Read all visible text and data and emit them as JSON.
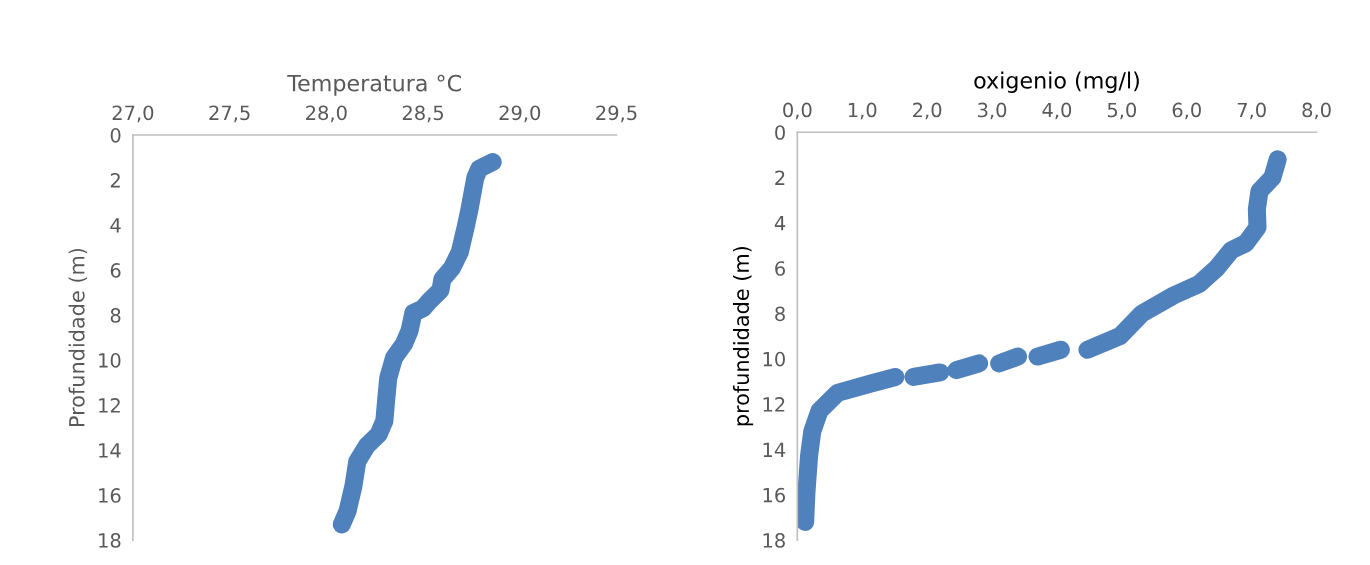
{
  "chart_data": [
    {
      "type": "line",
      "xlabel": "Temperatura °C",
      "ylabel": "Profundidade (m)",
      "xlim": [
        27.0,
        29.5
      ],
      "xticks": [
        {
          "value": 27.0,
          "label": "27,0"
        },
        {
          "value": 27.5,
          "label": "27,5"
        },
        {
          "value": 28.0,
          "label": "28,0"
        },
        {
          "value": 28.5,
          "label": "28,5"
        },
        {
          "value": 29.0,
          "label": "29,0"
        },
        {
          "value": 29.5,
          "label": "29,5"
        }
      ],
      "ylim": [
        18,
        0
      ],
      "yticks": [
        0,
        2,
        4,
        6,
        8,
        10,
        12,
        14,
        16,
        18
      ],
      "grid": false,
      "legend": false,
      "line_style": "solid",
      "series": [
        {
          "color": "#4f81bd",
          "x": [
            28.86,
            28.79,
            28.77,
            28.74,
            28.72,
            28.69,
            28.65,
            28.6,
            28.59,
            28.53,
            28.5,
            28.45,
            28.43,
            28.4,
            28.35,
            28.32,
            28.31,
            28.3,
            28.27,
            28.21,
            28.16,
            28.14,
            28.11,
            28.08
          ],
          "values": [
            1.2,
            1.5,
            1.9,
            3.3,
            4.1,
            5.2,
            5.9,
            6.4,
            6.9,
            7.4,
            7.7,
            7.9,
            8.7,
            9.3,
            9.9,
            10.8,
            11.7,
            12.7,
            13.3,
            13.8,
            14.5,
            15.6,
            16.7,
            17.3
          ]
        }
      ]
    },
    {
      "type": "line",
      "xlabel": "oxigenio (mg/l)",
      "ylabel": "profundidade (m)",
      "xlim": [
        0.0,
        8.0
      ],
      "xticks": [
        {
          "value": 0.0,
          "label": "0,0"
        },
        {
          "value": 1.0,
          "label": "1,0"
        },
        {
          "value": 2.0,
          "label": "2,0"
        },
        {
          "value": 3.0,
          "label": "3,0"
        },
        {
          "value": 4.0,
          "label": "4,0"
        },
        {
          "value": 5.0,
          "label": "5,0"
        },
        {
          "value": 6.0,
          "label": "6,0"
        },
        {
          "value": 7.0,
          "label": "7,0"
        },
        {
          "value": 8.0,
          "label": "8,0"
        }
      ],
      "ylim": [
        18,
        0
      ],
      "yticks": [
        0,
        2,
        4,
        6,
        8,
        10,
        12,
        14,
        16,
        18
      ],
      "grid": false,
      "legend": false,
      "line_style": "solid",
      "series": [
        {
          "color": "#4f81bd",
          "x": [
            7.4,
            7.32,
            7.12,
            7.08,
            7.09,
            6.91,
            6.69,
            6.46,
            6.19,
            5.8,
            5.31,
            4.97,
            4.47,
            null,
            4.06,
            3.7,
            null,
            3.4,
            3.11,
            null,
            2.8,
            2.45,
            null,
            2.2,
            1.79,
            null,
            1.51,
            1.12,
            0.62,
            0.34,
            0.23,
            0.18,
            0.14,
            0.12
          ],
          "values": [
            1.2,
            2.0,
            2.6,
            3.4,
            4.2,
            4.9,
            5.2,
            6.0,
            6.7,
            7.2,
            8.0,
            9.0,
            9.6,
            null,
            9.6,
            9.9,
            null,
            9.9,
            10.2,
            null,
            10.2,
            10.5,
            null,
            10.6,
            10.8,
            null,
            10.8,
            11.1,
            11.5,
            12.3,
            13.2,
            14.3,
            15.9,
            17.2
          ]
        }
      ]
    }
  ]
}
